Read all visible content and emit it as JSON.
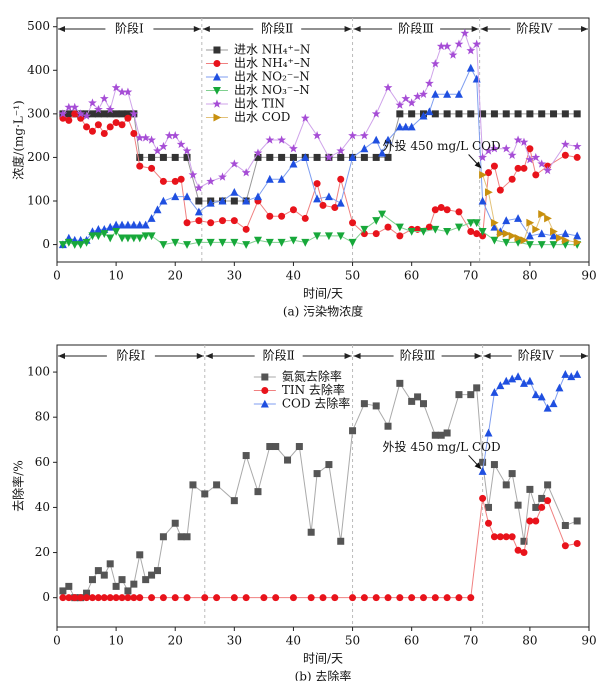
{
  "chart_data": [
    {
      "type": "line",
      "title": "(a) 污染物浓度",
      "xlabel": "时间/天",
      "ylabel": "浓度/(mg·L⁻¹)",
      "xlim": [
        0,
        90
      ],
      "xticks": [
        0,
        10,
        20,
        30,
        40,
        50,
        60,
        70,
        80,
        90
      ],
      "ylim": [
        -40,
        520
      ],
      "yticks": [
        0,
        100,
        200,
        300,
        400,
        500
      ],
      "legend": "upper center",
      "stages": [
        {
          "label": "阶段Ⅰ",
          "start": 0,
          "end": 24.5
        },
        {
          "label": "阶段Ⅱ",
          "start": 24.5,
          "end": 50
        },
        {
          "label": "阶段Ⅲ",
          "start": 50,
          "end": 71.5
        },
        {
          "label": "阶段Ⅳ",
          "start": 71.5,
          "end": 90
        }
      ],
      "annotation": {
        "text": "外投 450 mg/L COD",
        "x": 72,
        "y": 170
      },
      "series": [
        {
          "name": "进水 NH₄⁺–N",
          "color": "#333333",
          "line_color": "#999999",
          "marker": "square",
          "x": [
            1,
            2,
            3,
            4,
            5,
            6,
            7,
            8,
            9,
            10,
            11,
            12,
            13,
            14,
            16,
            18,
            20,
            22,
            24,
            26,
            28,
            30,
            32,
            34,
            36,
            38,
            40,
            42,
            44,
            46,
            48,
            50,
            52,
            54,
            56,
            58,
            60,
            62,
            64,
            66,
            68,
            70,
            72,
            74,
            76,
            78,
            80,
            82,
            84,
            86,
            88
          ],
          "values": [
            300,
            300,
            300,
            300,
            300,
            300,
            300,
            300,
            300,
            300,
            300,
            300,
            300,
            200,
            200,
            200,
            200,
            200,
            100,
            100,
            100,
            100,
            100,
            200,
            200,
            200,
            200,
            200,
            200,
            200,
            200,
            200,
            200,
            200,
            200,
            300,
            300,
            300,
            300,
            300,
            300,
            300,
            300,
            300,
            300,
            300,
            300,
            300,
            300,
            300,
            300
          ]
        },
        {
          "name": "出水 NH₄⁺–N",
          "color": "#e8131b",
          "line_color": "#f08080",
          "marker": "circle",
          "x": [
            1,
            2,
            3,
            4,
            5,
            6,
            7,
            8,
            9,
            10,
            11,
            12,
            13,
            14,
            16,
            18,
            20,
            21,
            22,
            24,
            26,
            28,
            30,
            32,
            34,
            36,
            38,
            40,
            42,
            44,
            45,
            47,
            48,
            50,
            52,
            54,
            56,
            58,
            60,
            61,
            63,
            64,
            65,
            66,
            68,
            70,
            71,
            72,
            73,
            74,
            75,
            77,
            78,
            79,
            80,
            81,
            83,
            86,
            88
          ],
          "values": [
            290,
            285,
            300,
            290,
            270,
            260,
            275,
            255,
            270,
            280,
            275,
            290,
            255,
            180,
            175,
            145,
            145,
            150,
            50,
            55,
            50,
            55,
            55,
            35,
            100,
            65,
            65,
            80,
            60,
            140,
            90,
            85,
            150,
            50,
            25,
            25,
            40,
            20,
            35,
            35,
            40,
            80,
            85,
            80,
            75,
            30,
            25,
            20,
            165,
            180,
            125,
            150,
            175,
            175,
            220,
            160,
            180,
            205,
            200
          ]
        },
        {
          "name": "出水 NO₂⁻–N",
          "color": "#1f4fe0",
          "line_color": "#7f9ef0",
          "marker": "triangle-up",
          "x": [
            1,
            2,
            3,
            4,
            5,
            6,
            7,
            8,
            9,
            10,
            11,
            12,
            13,
            14,
            15,
            16,
            17,
            18,
            20,
            22,
            24,
            26,
            28,
            30,
            32,
            34,
            36,
            38,
            40,
            42,
            44,
            46,
            48,
            50,
            52,
            54,
            55,
            56,
            58,
            59,
            60,
            62,
            63,
            64,
            66,
            68,
            70,
            71,
            72,
            74,
            75,
            76,
            78,
            80,
            82,
            84,
            86,
            88
          ],
          "values": [
            0,
            15,
            10,
            10,
            10,
            30,
            35,
            35,
            40,
            45,
            45,
            45,
            45,
            45,
            45,
            60,
            80,
            100,
            110,
            110,
            75,
            95,
            100,
            120,
            100,
            110,
            150,
            150,
            185,
            200,
            105,
            110,
            95,
            200,
            220,
            240,
            210,
            240,
            270,
            270,
            270,
            295,
            305,
            345,
            345,
            345,
            405,
            380,
            100,
            40,
            30,
            55,
            60,
            20,
            25,
            20,
            25,
            20
          ]
        },
        {
          "name": "出水 NO₃⁻–N",
          "color": "#17a83a",
          "line_color": "#7fd08f",
          "marker": "triangle-down",
          "x": [
            1,
            2,
            3,
            4,
            5,
            6,
            7,
            8,
            9,
            10,
            11,
            12,
            13,
            14,
            15,
            16,
            18,
            20,
            22,
            24,
            26,
            28,
            30,
            32,
            34,
            36,
            38,
            40,
            42,
            44,
            46,
            48,
            50,
            52,
            54,
            55,
            58,
            60,
            62,
            64,
            66,
            68,
            70,
            71,
            72,
            74,
            76,
            78,
            80,
            82,
            84,
            86,
            88
          ],
          "values": [
            0,
            5,
            0,
            0,
            5,
            20,
            20,
            25,
            15,
            30,
            15,
            15,
            15,
            15,
            20,
            20,
            0,
            5,
            0,
            5,
            5,
            5,
            5,
            0,
            10,
            5,
            5,
            10,
            5,
            20,
            20,
            20,
            5,
            35,
            55,
            70,
            40,
            30,
            30,
            35,
            30,
            40,
            50,
            50,
            30,
            10,
            5,
            5,
            0,
            0,
            0,
            0,
            0
          ]
        },
        {
          "name": "出水 TIN",
          "color": "#a64dd6",
          "line_color": "#cfa3ea",
          "marker": "star",
          "x": [
            1,
            2,
            3,
            4,
            5,
            6,
            7,
            8,
            9,
            10,
            11,
            12,
            13,
            14,
            15,
            16,
            17,
            18,
            19,
            20,
            21,
            22,
            23,
            24,
            26,
            28,
            30,
            32,
            34,
            36,
            38,
            40,
            42,
            44,
            46,
            48,
            50,
            52,
            54,
            56,
            58,
            59,
            60,
            61,
            62,
            63,
            64,
            65,
            66,
            67,
            68,
            69,
            70,
            71,
            72,
            73,
            74,
            76,
            77,
            78,
            79,
            80,
            81,
            82,
            83,
            86,
            88
          ],
          "values": [
            300,
            315,
            315,
            300,
            295,
            325,
            310,
            335,
            310,
            360,
            350,
            350,
            300,
            245,
            245,
            240,
            215,
            225,
            250,
            250,
            230,
            215,
            160,
            130,
            145,
            155,
            185,
            165,
            210,
            240,
            240,
            220,
            290,
            250,
            200,
            215,
            250,
            250,
            300,
            360,
            320,
            335,
            325,
            340,
            345,
            370,
            415,
            455,
            455,
            435,
            460,
            485,
            445,
            460,
            200,
            215,
            220,
            220,
            205,
            240,
            235,
            195,
            200,
            185,
            170,
            230,
            225
          ]
        },
        {
          "name": "出水 COD",
          "color": "#c8900f",
          "line_color": "#e3c27a",
          "marker": "triangle-right",
          "x": [
            72,
            73,
            74,
            75,
            76,
            77,
            78,
            79,
            80,
            81,
            82,
            83,
            84,
            85,
            86,
            88
          ],
          "values": [
            160,
            120,
            50,
            25,
            25,
            20,
            15,
            10,
            50,
            35,
            70,
            60,
            30,
            15,
            10,
            5
          ]
        }
      ]
    },
    {
      "type": "line",
      "title": "(b) 去除率",
      "xlabel": "时间/天",
      "ylabel": "去除率/%",
      "xlim": [
        0,
        90
      ],
      "xticks": [
        0,
        10,
        20,
        30,
        40,
        50,
        60,
        70,
        80,
        90
      ],
      "ylim": [
        -13,
        112
      ],
      "yticks": [
        0,
        20,
        40,
        60,
        80,
        100
      ],
      "legend": "upper center",
      "stages": [
        {
          "label": "阶段Ⅰ",
          "start": 0,
          "end": 25
        },
        {
          "label": "阶段Ⅱ",
          "start": 25,
          "end": 50
        },
        {
          "label": "阶段Ⅲ",
          "start": 50,
          "end": 72
        },
        {
          "label": "阶段Ⅳ",
          "start": 72,
          "end": 90
        }
      ],
      "annotation": {
        "text": "外投 450 mg/L COD",
        "x": 72,
        "y": 56
      },
      "series": [
        {
          "name": "氨氮去除率",
          "color": "#555555",
          "line_color": "#aaaaaa",
          "marker": "square",
          "x": [
            1,
            2,
            3,
            4,
            5,
            6,
            7,
            8,
            9,
            10,
            11,
            12,
            13,
            14,
            15,
            16,
            17,
            18,
            20,
            21,
            22,
            23,
            25,
            27,
            30,
            32,
            34,
            36,
            37,
            39,
            41,
            43,
            44,
            46,
            48,
            50,
            52,
            54,
            56,
            58,
            60,
            61,
            62,
            64,
            65,
            66,
            68,
            70,
            71,
            72,
            73,
            74,
            76,
            77,
            78,
            79,
            80,
            81,
            82,
            83,
            86,
            88
          ],
          "values": [
            3,
            5,
            0,
            0,
            2,
            8,
            12,
            10,
            15,
            5,
            8,
            3,
            6,
            19,
            8,
            10,
            12,
            27,
            33,
            27,
            27,
            50,
            46,
            50,
            43,
            63,
            47,
            67,
            67,
            61,
            67,
            29,
            55,
            59,
            25,
            74,
            86,
            85,
            76,
            95,
            87,
            89,
            86,
            72,
            72,
            73,
            90,
            90,
            93,
            60,
            40,
            59,
            50,
            55,
            41,
            25,
            48,
            40,
            44,
            50,
            32,
            34
          ]
        },
        {
          "name": "TIN 去除率",
          "color": "#e8131b",
          "line_color": "#f08080",
          "marker": "circle",
          "x": [
            1,
            2,
            3,
            4,
            5,
            6,
            7,
            8,
            9,
            10,
            11,
            12,
            13,
            14,
            16,
            18,
            20,
            22,
            25,
            27,
            30,
            32,
            35,
            37,
            40,
            43,
            45,
            47,
            50,
            52,
            54,
            56,
            58,
            60,
            62,
            64,
            66,
            68,
            70,
            72,
            73,
            74,
            75,
            76,
            77,
            78,
            79,
            80,
            81,
            82,
            83,
            86,
            88
          ],
          "values": [
            0,
            0,
            0,
            0,
            0,
            0,
            0,
            0,
            0,
            0,
            0,
            0,
            0,
            0,
            0,
            0,
            0,
            0,
            0,
            0,
            0,
            0,
            0,
            0,
            0,
            0,
            0,
            0,
            0,
            0,
            0,
            0,
            0,
            0,
            0,
            0,
            0,
            0,
            0,
            44,
            33,
            27,
            27,
            27,
            27,
            21,
            20,
            34,
            34,
            40,
            43,
            23,
            24
          ]
        },
        {
          "name": "COD 去除率",
          "color": "#1f4fe0",
          "line_color": "#7f9ef0",
          "marker": "triangle-up",
          "x": [
            72,
            73,
            74,
            75,
            76,
            77,
            78,
            79,
            80,
            81,
            82,
            83,
            84,
            85,
            86,
            87,
            88
          ],
          "values": [
            56,
            73,
            91,
            94,
            96,
            97,
            98,
            95,
            96,
            90,
            89,
            84,
            86,
            93,
            99,
            98,
            99
          ]
        }
      ]
    }
  ]
}
